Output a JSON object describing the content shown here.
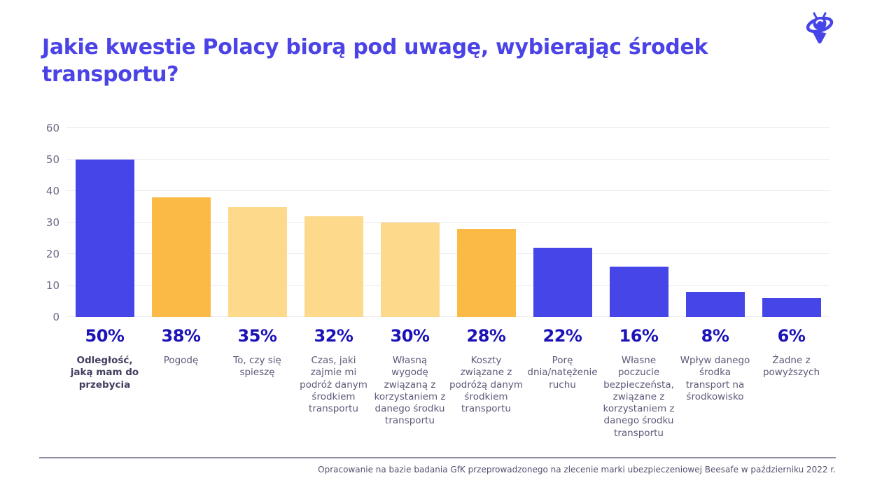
{
  "page": {
    "title": "Jakie kwestie Polacy biorą pod uwagę, wybierając środek transportu?",
    "footer": "Opracowanie na bazie badania GfK przeprowadzonego na zlecenie marki ubezpieczeniowej Beesafe w październiku 2022 r.",
    "logo_name": "beesafe-bee-logo"
  },
  "colors": {
    "title_text": "#4B43E5",
    "bar_blue": "#4645E8",
    "bar_amber": "#FBBA45",
    "bar_yellow": "#FDD98B",
    "percent_text": "#1B12B7",
    "axis_text": "#6B6A87",
    "label_text": "#5C5A79",
    "label_text_emphasis": "#413F60",
    "gridline": "#EAEAF0",
    "divider": "#8F8DA3",
    "footer_text": "#52506E",
    "logo": "#4645E8",
    "background": "#FFFFFF"
  },
  "chart_data": {
    "type": "bar",
    "title": "Jakie kwestie Polacy biorą pod uwagę, wybierając środek transportu?",
    "categories": [
      "Odległość, jaką mam do przebycia",
      "Pogodę",
      "To, czy się spieszę",
      "Czas, jaki zajmie mi podróż danym środkiem transportu",
      "Własną wygodę związaną z korzystaniem z danego środku transportu",
      "Koszty związane z podróżą danym środkiem transportu",
      "Porę dnia/natężenie ruchu",
      "Własne poczucie bezpieczeństa, związane z korzystaniem z danego środku transportu",
      "Wpływ danego środka transport na środkowisko",
      "Żadne z powyższych"
    ],
    "values": [
      50,
      38,
      35,
      32,
      30,
      28,
      22,
      16,
      8,
      6
    ],
    "value_labels": [
      "50%",
      "38%",
      "35%",
      "32%",
      "30%",
      "28%",
      "22%",
      "16%",
      "8%",
      "6%"
    ],
    "bar_color_keys": [
      "blue",
      "amber",
      "yellow",
      "yellow",
      "yellow",
      "amber",
      "blue",
      "blue",
      "blue",
      "blue"
    ],
    "emphasized_category_index": 0,
    "xlabel": "",
    "ylabel": "",
    "ylim": [
      0,
      60
    ],
    "yticks": [
      0,
      10,
      20,
      30,
      40,
      50,
      60
    ],
    "grid": true,
    "legend": false,
    "unit": "%"
  }
}
